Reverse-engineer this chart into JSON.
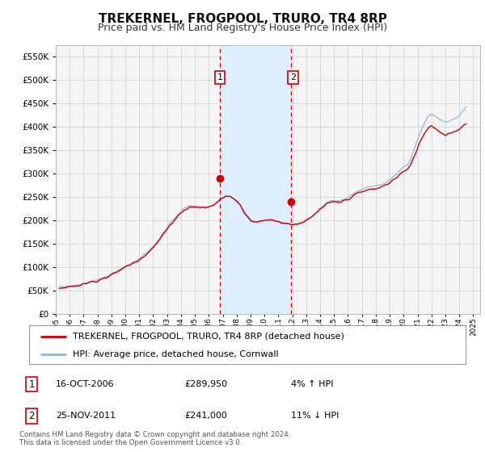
{
  "title": "TREKERNEL, FROGPOOL, TRURO, TR4 8RP",
  "subtitle": "Price paid vs. HM Land Registry's House Price Index (HPI)",
  "title_fontsize": 11,
  "subtitle_fontsize": 9,
  "background_color": "#ffffff",
  "grid_color": "#d8d8d8",
  "plot_bg_color": "#f5f5f5",
  "red_line_color": "#cc0000",
  "blue_line_color": "#90b8d8",
  "highlight_fill": "#ddeeff",
  "vline_color": "#cc0000",
  "yticks": [
    0,
    50000,
    100000,
    150000,
    200000,
    250000,
    300000,
    350000,
    400000,
    450000,
    500000,
    550000
  ],
  "xlim_start": 1995.0,
  "xlim_end": 2025.5,
  "ylim_min": 0,
  "ylim_max": 575000,
  "vline1_x": 2006.79,
  "vline2_x": 2011.9,
  "legend_entry1": "TREKERNEL, FROGPOOL, TRURO, TR4 8RP (detached house)",
  "legend_entry2": "HPI: Average price, detached house, Cornwall",
  "table_row1": [
    "1",
    "16-OCT-2006",
    "£289,950",
    "4% ↑ HPI"
  ],
  "table_row2": [
    "2",
    "25-NOV-2011",
    "£241,000",
    "11% ↓ HPI"
  ],
  "footnote": "Contains HM Land Registry data © Crown copyright and database right 2024.\nThis data is licensed under the Open Government Licence v3.0.",
  "sale1_year": 2006.79,
  "sale1_val": 289950,
  "sale2_year": 2011.9,
  "sale2_val": 241000,
  "hpi_base": [
    58000,
    58500,
    59000,
    60000,
    61000,
    62000,
    63500,
    65000,
    67000,
    69500,
    72000,
    74000,
    76000,
    78500,
    81500,
    85000,
    89000,
    93500,
    98000,
    102000,
    106000,
    110000,
    114500,
    119000,
    124000,
    130000,
    137000,
    144000,
    153000,
    163000,
    174000,
    184000,
    195000,
    204000,
    212000,
    220000,
    226000,
    230000,
    232000,
    231000,
    230000,
    229000,
    228500,
    229000,
    232500,
    238000,
    244000,
    249500,
    253000,
    253000,
    249000,
    243000,
    234000,
    222000,
    211000,
    203000,
    199000,
    197500,
    198500,
    200500,
    202500,
    202500,
    200500,
    198500,
    196500,
    194500,
    193500,
    192500,
    193500,
    194500,
    196500,
    199500,
    205000,
    211000,
    218000,
    225500,
    232500,
    238500,
    241500,
    242500,
    242000,
    243000,
    246000,
    250000,
    254500,
    259500,
    263500,
    266500,
    269500,
    272000,
    273000,
    274000,
    276000,
    279000,
    283000,
    288000,
    294000,
    300000,
    307500,
    314000,
    318000,
    330000,
    352000,
    374000,
    392000,
    408000,
    422000,
    428000,
    424000,
    418000,
    414000,
    411000,
    413000,
    416000,
    420000,
    425000,
    432000,
    440000
  ],
  "red_base": [
    57000,
    57500,
    58000,
    59000,
    60000,
    61000,
    62500,
    64500,
    66500,
    68500,
    70500,
    72500,
    74500,
    77000,
    80000,
    83500,
    87500,
    92000,
    96500,
    100500,
    104500,
    108500,
    113000,
    117500,
    122500,
    128000,
    135000,
    142000,
    151000,
    161000,
    171000,
    181000,
    192000,
    201000,
    209000,
    217000,
    223000,
    227000,
    229000,
    229000,
    228500,
    228000,
    227500,
    228500,
    232000,
    237500,
    243500,
    248500,
    252000,
    252000,
    248000,
    242000,
    233000,
    221000,
    210000,
    202000,
    198000,
    197000,
    198000,
    200000,
    202000,
    202000,
    200000,
    198000,
    196000,
    194000,
    193000,
    192000,
    193000,
    194000,
    196000,
    199000,
    204000,
    210000,
    217000,
    224000,
    230000,
    235500,
    238000,
    239000,
    239000,
    240000,
    242500,
    246500,
    250500,
    255000,
    258500,
    261000,
    264000,
    266000,
    267000,
    268000,
    270000,
    273000,
    277000,
    281500,
    287000,
    292500,
    299500,
    305000,
    308000,
    318000,
    337000,
    356000,
    373000,
    387000,
    399000,
    403000,
    399000,
    392000,
    387000,
    384000,
    386000,
    389000,
    392000,
    396000,
    402000,
    408000
  ]
}
